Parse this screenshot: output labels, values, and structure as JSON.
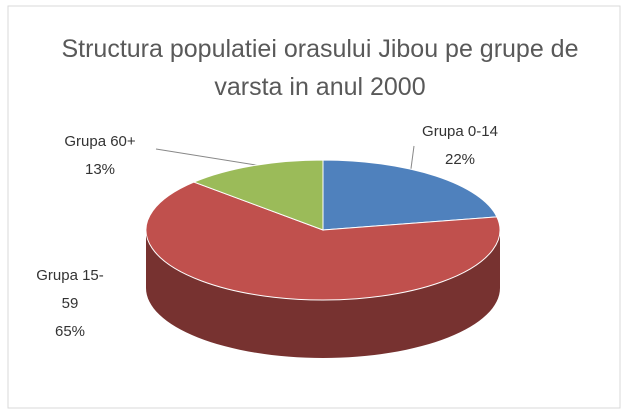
{
  "chart_data": {
    "type": "pie",
    "title": "Structura populatiei orasului Jibou pe grupe de varsta in anul 2000",
    "categories": [
      "Grupa 0-14",
      "Grupa 15-59",
      "Grupa 60+"
    ],
    "values": [
      22,
      65,
      13
    ],
    "value_labels": [
      "22%",
      "65%",
      "13%"
    ],
    "colors": [
      "#4f81bd",
      "#c0504d",
      "#9bbb59"
    ]
  }
}
